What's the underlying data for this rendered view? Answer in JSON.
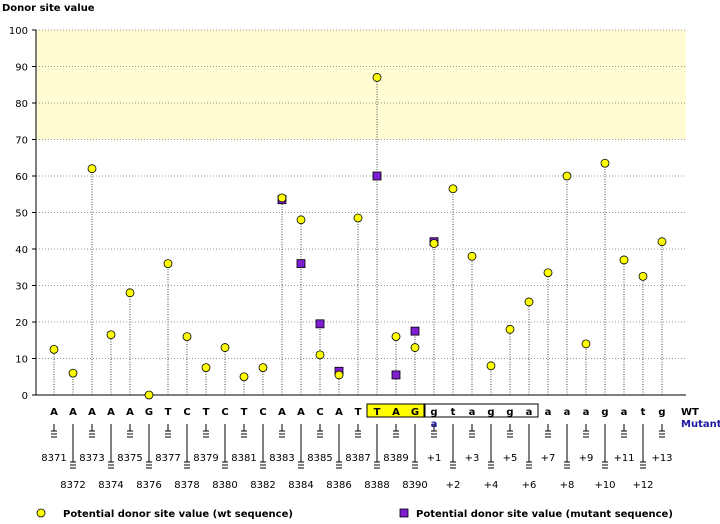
{
  "chart_data": {
    "type": "scatter",
    "title": "Donor site value",
    "ylim": [
      0,
      100
    ],
    "y_ticks": [
      0,
      10,
      20,
      30,
      40,
      50,
      60,
      70,
      80,
      90,
      100
    ],
    "highlight_band_y": [
      70,
      100
    ],
    "grid": true,
    "categories": [
      "A",
      "A",
      "A",
      "A",
      "A",
      "G",
      "T",
      "C",
      "T",
      "C",
      "T",
      "C",
      "A",
      "A",
      "C",
      "A",
      "T",
      "T",
      "A",
      "G",
      "g",
      "t",
      "a",
      "g",
      "g",
      "a",
      "a",
      "a",
      "a",
      "g",
      "a",
      "t",
      "g"
    ],
    "positions": [
      "8371",
      "8372",
      "8373",
      "8374",
      "8375",
      "8376",
      "8377",
      "8378",
      "8379",
      "8380",
      "8381",
      "8382",
      "8383",
      "8384",
      "8385",
      "8386",
      "8387",
      "8388",
      "8389",
      "8390",
      "+1",
      "+2",
      "+3",
      "+4",
      "+5",
      "+6",
      "+7",
      "+8",
      "+9",
      "+10",
      "+11",
      "+12",
      "+13"
    ],
    "exon_highlight": [
      "T",
      "A",
      "G"
    ],
    "mutant_base": "a",
    "mutant_index": 20,
    "row_labels": {
      "wt": "WT",
      "mutant": "Mutant"
    },
    "series": [
      {
        "name": "Potential donor site value (wt sequence)",
        "marker": "circle",
        "color": "#ffff00",
        "values": [
          12.5,
          6,
          62,
          16.5,
          28,
          0,
          36,
          16,
          7.5,
          13,
          5,
          7.5,
          54,
          48,
          11,
          5.5,
          48.5,
          87,
          16,
          13,
          41.5,
          56.5,
          38,
          8,
          18,
          25.5,
          33.5,
          60,
          14,
          63.5,
          37,
          32.5,
          42
        ]
      },
      {
        "name": "Potential donor site value (mutant sequence)",
        "marker": "square",
        "color": "#7d1fd0",
        "points": [
          [
            12,
            53.5
          ],
          [
            13,
            36
          ],
          [
            14,
            19.5
          ],
          [
            15,
            6.5
          ],
          [
            17,
            60
          ],
          [
            18,
            5.5
          ],
          [
            19,
            17.5
          ],
          [
            20,
            42
          ]
        ]
      }
    ]
  },
  "legend": {
    "wt": "Potential donor site value (wt sequence)",
    "mutant": "Potential donor site value (mutant sequence)"
  }
}
